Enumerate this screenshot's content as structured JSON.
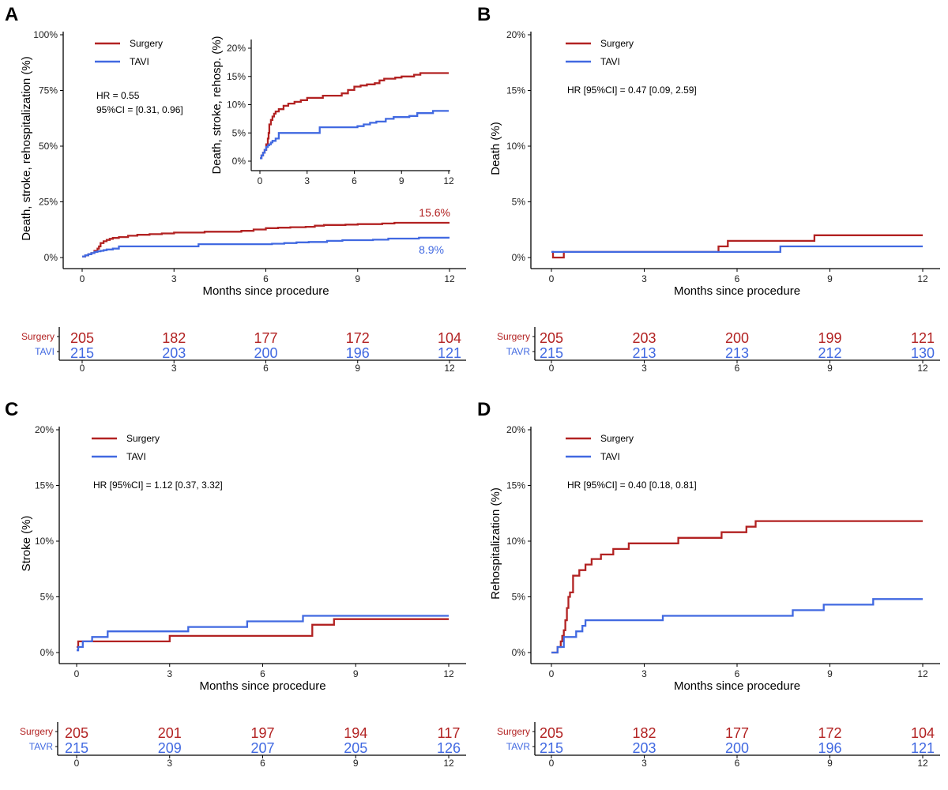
{
  "colors": {
    "surgery": "#b22222",
    "tavi": "#4169e1",
    "axis": "#000000"
  },
  "x_axis": {
    "ticks": [
      0,
      3,
      6,
      9,
      12
    ],
    "label": "Months since procedure"
  },
  "chart_data": [
    {
      "panel": "A",
      "type": "line",
      "step": true,
      "ylabel": "Death, stroke, rehospitalization (%)",
      "xlabel": "Months since procedure",
      "ylim": [
        0,
        100
      ],
      "yticks": [
        0,
        25,
        50,
        75,
        100
      ],
      "ytick_labels": [
        "0%",
        "25%",
        "50%",
        "75%",
        "100%"
      ],
      "legend": [
        "Surgery",
        "TAVI"
      ],
      "hr_lines": [
        "HR = 0.55",
        "95%CI = [0.31, 0.96]"
      ],
      "end_labels": {
        "surgery": "15.6%",
        "tavi": "8.9%"
      },
      "series": [
        {
          "name": "Surgery",
          "key": "surgery",
          "x": [
            0,
            0.1,
            0.2,
            0.3,
            0.4,
            0.5,
            0.55,
            0.6,
            0.7,
            0.8,
            0.9,
            1.0,
            1.2,
            1.5,
            1.8,
            2.2,
            2.6,
            3.0,
            3.5,
            4.0,
            4.6,
            5.2,
            5.6,
            6.0,
            6.4,
            6.8,
            7.3,
            7.6,
            7.9,
            8.2,
            8.6,
            9.0,
            9.4,
            9.8,
            10.2,
            12
          ],
          "y": [
            0.5,
            1.0,
            1.5,
            2.0,
            3.0,
            4.0,
            5.0,
            6.5,
            7.3,
            7.9,
            8.4,
            8.8,
            9.2,
            9.8,
            10.2,
            10.5,
            10.8,
            11.2,
            11.2,
            11.6,
            11.6,
            12.0,
            12.6,
            13.2,
            13.4,
            13.6,
            13.8,
            14.3,
            14.6,
            14.6,
            14.8,
            15.0,
            15.0,
            15.3,
            15.6,
            15.6
          ]
        },
        {
          "name": "TAVI",
          "key": "tavi",
          "x": [
            0,
            0.1,
            0.2,
            0.3,
            0.4,
            0.5,
            0.6,
            0.7,
            0.8,
            1.0,
            1.2,
            2.0,
            3.0,
            3.5,
            3.8,
            4.5,
            5.5,
            6.2,
            6.6,
            7.0,
            7.4,
            8.0,
            8.5,
            9.0,
            9.5,
            10.0,
            11.0,
            12
          ],
          "y": [
            0.5,
            1.0,
            1.5,
            2.0,
            2.5,
            2.8,
            3.0,
            3.3,
            3.6,
            4.0,
            5.0,
            5.0,
            5.0,
            5.0,
            6.0,
            6.0,
            6.0,
            6.2,
            6.5,
            6.8,
            7.0,
            7.5,
            7.8,
            7.8,
            8.0,
            8.5,
            8.9,
            8.9
          ]
        }
      ],
      "inset": {
        "ylabel": "Death, stroke, rehosp. (%)",
        "ylim": [
          0,
          20
        ],
        "yticks": [
          0,
          5,
          10,
          15,
          20
        ],
        "ytick_labels": [
          "0%",
          "5%",
          "10%",
          "15%",
          "20%"
        ],
        "xticks": [
          0,
          3,
          6,
          9,
          12
        ]
      },
      "risk_table": {
        "rows": [
          {
            "label": "Surgery",
            "key": "surgery",
            "values": [
              "205",
              "182",
              "177",
              "172",
              "104"
            ]
          },
          {
            "label": "TAVI",
            "key": "tavi",
            "values": [
              "215",
              "203",
              "200",
              "196",
              "121"
            ]
          }
        ],
        "ticks": [
          0,
          3,
          6,
          9,
          12
        ]
      }
    },
    {
      "panel": "B",
      "type": "line",
      "step": true,
      "ylabel": "Death (%)",
      "xlabel": "Months since procedure",
      "ylim": [
        0,
        20
      ],
      "yticks": [
        0,
        5,
        10,
        15,
        20
      ],
      "ytick_labels": [
        "0%",
        "5%",
        "10%",
        "15%",
        "20%"
      ],
      "legend": [
        "Surgery",
        "TAVI"
      ],
      "hr_lines": [
        "HR [95%CI] = 0.47 [0.09, 2.59]"
      ],
      "series": [
        {
          "name": "Surgery",
          "key": "surgery",
          "x": [
            0,
            0.05,
            0.4,
            5.4,
            5.7,
            8.5,
            12
          ],
          "y": [
            0.5,
            0,
            0.5,
            1.0,
            1.5,
            2.0,
            2.0
          ]
        },
        {
          "name": "TAVI",
          "key": "tavi",
          "x": [
            0,
            7.4,
            12
          ],
          "y": [
            0.5,
            1.0,
            1.0
          ]
        }
      ],
      "risk_table": {
        "rows": [
          {
            "label": "Surgery",
            "key": "surgery",
            "values": [
              "205",
              "203",
              "200",
              "199",
              "121"
            ]
          },
          {
            "label": "TAVR",
            "key": "tavi",
            "values": [
              "215",
              "213",
              "213",
              "212",
              "130"
            ]
          }
        ],
        "ticks": [
          0,
          3,
          6,
          9,
          12
        ]
      }
    },
    {
      "panel": "C",
      "type": "line",
      "step": true,
      "ylabel": "Stroke (%)",
      "xlabel": "Months since procedure",
      "ylim": [
        0,
        20
      ],
      "yticks": [
        0,
        5,
        10,
        15,
        20
      ],
      "ytick_labels": [
        "0%",
        "5%",
        "10%",
        "15%",
        "20%"
      ],
      "legend": [
        "Surgery",
        "TAVI"
      ],
      "hr_lines": [
        "HR [95%CI] = 1.12 [0.37, 3.32]"
      ],
      "series": [
        {
          "name": "Surgery",
          "key": "surgery",
          "x": [
            0,
            0.05,
            3.0,
            7.6,
            8.3,
            12
          ],
          "y": [
            0.5,
            1.0,
            1.5,
            2.5,
            3.0,
            3.0
          ]
        },
        {
          "name": "TAVI",
          "key": "tavi",
          "x": [
            0,
            0.05,
            0.2,
            0.5,
            1.0,
            3.6,
            5.5,
            7.3,
            12
          ],
          "y": [
            0.2,
            0.5,
            1.0,
            1.4,
            1.9,
            2.3,
            2.8,
            3.3,
            3.3
          ]
        }
      ],
      "risk_table": {
        "rows": [
          {
            "label": "Surgery",
            "key": "surgery",
            "values": [
              "205",
              "201",
              "197",
              "194",
              "117"
            ]
          },
          {
            "label": "TAVR",
            "key": "tavi",
            "values": [
              "215",
              "209",
              "207",
              "205",
              "126"
            ]
          }
        ],
        "ticks": [
          0,
          3,
          6,
          9,
          12
        ]
      }
    },
    {
      "panel": "D",
      "type": "line",
      "step": true,
      "ylabel": "Rehospitalization (%)",
      "xlabel": "Months since procedure",
      "ylim": [
        0,
        20
      ],
      "yticks": [
        0,
        5,
        10,
        15,
        20
      ],
      "ytick_labels": [
        "0%",
        "5%",
        "10%",
        "15%",
        "20%"
      ],
      "legend": [
        "Surgery",
        "TAVI"
      ],
      "hr_lines": [
        "HR [95%CI] = 0.40 [0.18, 0.81]"
      ],
      "series": [
        {
          "name": "Surgery",
          "key": "surgery",
          "x": [
            0,
            0.2,
            0.3,
            0.35,
            0.4,
            0.45,
            0.5,
            0.55,
            0.6,
            0.7,
            0.9,
            1.1,
            1.3,
            1.6,
            2.0,
            2.5,
            4.1,
            5.5,
            6.3,
            6.6,
            12
          ],
          "y": [
            0,
            0.5,
            1.0,
            1.5,
            2.0,
            2.9,
            4.0,
            5.0,
            5.4,
            6.9,
            7.4,
            7.9,
            8.4,
            8.8,
            9.3,
            9.8,
            10.3,
            10.8,
            11.3,
            11.8,
            11.8
          ]
        },
        {
          "name": "TAVI",
          "key": "tavi",
          "x": [
            0,
            0.2,
            0.4,
            0.8,
            1.0,
            1.1,
            3.6,
            6.0,
            7.8,
            8.8,
            10.4,
            12
          ],
          "y": [
            0,
            0.5,
            1.4,
            1.9,
            2.4,
            2.9,
            3.3,
            3.3,
            3.8,
            4.3,
            4.8,
            4.8
          ]
        }
      ],
      "risk_table": {
        "rows": [
          {
            "label": "Surgery",
            "key": "surgery",
            "values": [
              "205",
              "182",
              "177",
              "172",
              "104"
            ]
          },
          {
            "label": "TAVR",
            "key": "tavi",
            "values": [
              "215",
              "203",
              "200",
              "196",
              "121"
            ]
          }
        ],
        "ticks": [
          0,
          3,
          6,
          9,
          12
        ]
      }
    }
  ]
}
